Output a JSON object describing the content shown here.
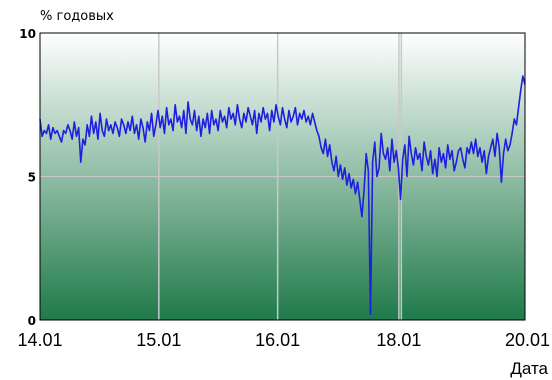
{
  "chart_data": {
    "type": "line",
    "ylabel": "% годовых",
    "xlabel": "Дата",
    "ylim": [
      0,
      10
    ],
    "yticks": [
      "0",
      "5",
      "10"
    ],
    "xticks": [
      "14.01",
      "15.01",
      "16.01",
      "18.01",
      "20.01"
    ],
    "grid": true,
    "colors": {
      "line": "#1f1fe0",
      "grid": "#c8c8c8",
      "bg_top": "#ffffff",
      "bg_bottom": "#1f7a4a"
    },
    "series": [
      {
        "values": [
          7.0,
          6.4,
          6.6,
          6.5,
          6.8,
          6.3,
          6.7,
          6.5,
          6.6,
          6.4,
          6.2,
          6.6,
          6.5,
          6.8,
          6.6,
          6.3,
          6.9,
          6.4,
          6.7,
          5.5,
          6.3,
          6.1,
          6.8,
          6.4,
          7.1,
          6.5,
          6.9,
          6.3,
          7.2,
          6.6,
          6.4,
          7.0,
          6.6,
          6.8,
          6.5,
          6.9,
          6.7,
          6.4,
          7.0,
          6.8,
          6.5,
          6.9,
          6.6,
          7.1,
          6.5,
          6.8,
          6.3,
          7.0,
          6.7,
          6.2,
          6.9,
          6.6,
          7.2,
          6.4,
          6.8,
          7.3,
          6.7,
          7.1,
          6.5,
          7.4,
          6.8,
          7.0,
          6.6,
          7.5,
          6.9,
          7.1,
          6.7,
          7.3,
          6.5,
          7.6,
          7.0,
          6.8,
          7.3,
          6.6,
          7.1,
          6.4,
          7.0,
          6.7,
          7.2,
          6.5,
          7.3,
          6.8,
          7.0,
          6.6,
          7.3,
          6.9,
          7.1,
          6.7,
          7.4,
          7.0,
          7.2,
          6.8,
          7.5,
          7.0,
          6.7,
          7.2,
          6.9,
          7.4,
          7.1,
          6.8,
          7.3,
          6.5,
          7.2,
          6.9,
          7.4,
          7.0,
          7.2,
          6.6,
          7.3,
          6.9,
          7.5,
          7.1,
          6.8,
          7.4,
          7.0,
          6.7,
          7.3,
          6.9,
          7.1,
          7.4,
          6.8,
          7.2,
          7.0,
          7.3,
          6.9,
          7.1,
          6.8,
          7.2,
          6.9,
          6.6,
          6.4,
          6.0,
          5.8,
          6.3,
          5.7,
          6.1,
          5.5,
          5.2,
          5.7,
          5.0,
          5.4,
          4.9,
          5.3,
          4.7,
          5.1,
          4.6,
          4.9,
          4.4,
          4.8,
          4.2,
          3.6,
          4.5,
          5.8,
          5.2,
          0.2,
          5.5,
          6.2,
          5.0,
          5.3,
          6.5,
          5.8,
          5.6,
          6.0,
          5.2,
          6.3,
          5.5,
          5.9,
          5.3,
          4.2,
          5.6,
          6.1,
          5.0,
          6.4,
          5.8,
          5.4,
          6.0,
          5.6,
          5.8,
          5.2,
          6.2,
          5.7,
          5.4,
          5.9,
          5.1,
          5.6,
          5.0,
          6.0,
          5.5,
          5.8,
          5.3,
          6.1,
          5.6,
          5.9,
          5.2,
          5.5,
          5.9,
          6.0,
          5.6,
          5.3,
          6.0,
          5.8,
          6.2,
          5.8,
          6.3,
          5.7,
          6.0,
          5.5,
          5.9,
          5.1,
          5.7,
          6.0,
          6.3,
          5.7,
          6.5,
          6.0,
          4.8,
          5.8,
          6.3,
          5.9,
          6.1,
          6.5,
          7.0,
          6.8,
          7.4,
          8.0,
          8.5,
          8.2
        ]
      }
    ]
  }
}
